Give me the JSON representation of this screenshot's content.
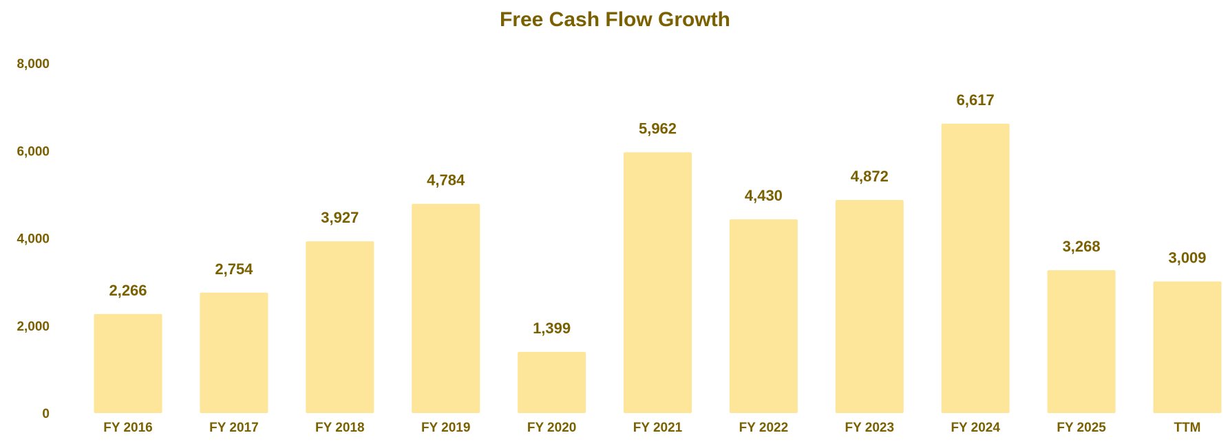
{
  "chart_data": {
    "type": "bar",
    "title": "Free Cash Flow Growth",
    "xlabel": "",
    "ylabel": "",
    "categories": [
      "FY 2016",
      "FY 2017",
      "FY 2018",
      "FY 2019",
      "FY 2020",
      "FY 2021",
      "FY 2022",
      "FY 2023",
      "FY 2024",
      "FY 2025",
      "TTM"
    ],
    "values": [
      2266,
      2754,
      3927,
      4784,
      1399,
      5962,
      4430,
      4872,
      6617,
      3268,
      3009
    ],
    "value_labels": [
      "2,266",
      "2,754",
      "3,927",
      "4,784",
      "1,399",
      "5,962",
      "4,430",
      "4,872",
      "6,617",
      "3,268",
      "3,009"
    ],
    "ylim": [
      0,
      8000
    ],
    "yticks": [
      0,
      2000,
      4000,
      6000,
      8000
    ],
    "ytick_labels": [
      "0",
      "2,000",
      "4,000",
      "6,000",
      "8,000"
    ],
    "grid": false,
    "legend": "none",
    "colors": {
      "bar": "#fde59a",
      "text": "#7a6000"
    }
  }
}
